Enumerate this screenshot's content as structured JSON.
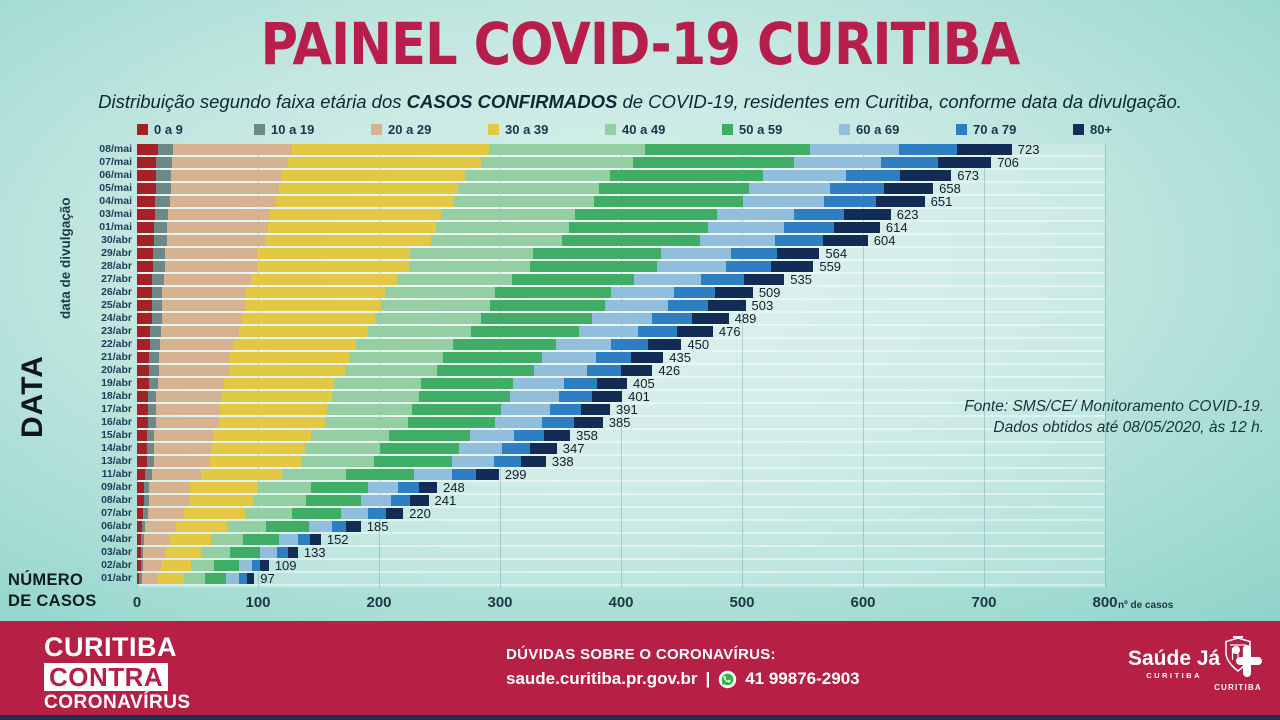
{
  "header": {
    "title": "PAINEL COVID-19 CURITIBA",
    "subtitle_pre": "Distribuição segundo faixa etária dos ",
    "subtitle_bold": "CASOS CONFIRMADOS",
    "subtitle_post": " de COVID-19, residentes em Curitiba, conforme data da divulgação."
  },
  "axis_labels": {
    "y_main": "DATA",
    "y_sub": "data de divulgação",
    "corner_line1": "NÚMERO",
    "corner_line2": "DE CASOS",
    "x_unit": "nº de casos"
  },
  "source_note": {
    "line1": "Fonte: SMS/CE/ Monitoramento COVID-19.",
    "line2": "Dados obtidos até 08/05/2020, às 12 h."
  },
  "chart_data": {
    "type": "bar",
    "orientation": "horizontal",
    "stacked": true,
    "title": "Casos confirmados de COVID-19 por faixa etária e data de divulgação",
    "xlabel": "nº de casos",
    "ylabel": "DATA (data de divulgação)",
    "xlim": [
      0,
      800
    ],
    "x_ticks": [
      0,
      100,
      200,
      300,
      400,
      500,
      600,
      700,
      800
    ],
    "legend_position": "top",
    "grid": "vertical",
    "categories": [
      "08/mai",
      "07/mai",
      "06/mai",
      "05/mai",
      "04/mai",
      "03/mai",
      "01/mai",
      "30/abr",
      "29/abr",
      "28/abr",
      "27/abr",
      "26/abr",
      "25/abr",
      "24/abr",
      "23/abr",
      "22/abr",
      "21/abr",
      "20/abr",
      "19/abr",
      "18/abr",
      "17/abr",
      "16/abr",
      "15/abr",
      "14/abr",
      "13/abr",
      "11/abr",
      "09/abr",
      "08/abr",
      "07/abr",
      "06/abr",
      "04/abr",
      "03/abr",
      "02/abr",
      "01/abr"
    ],
    "totals": [
      723,
      706,
      673,
      658,
      651,
      623,
      614,
      604,
      564,
      559,
      535,
      509,
      503,
      489,
      476,
      450,
      435,
      426,
      405,
      401,
      391,
      385,
      358,
      347,
      338,
      299,
      248,
      241,
      220,
      185,
      152,
      133,
      109,
      97
    ],
    "groups": [
      {
        "label": "0 a 9",
        "color": "#a62126",
        "fraction_est": 0.0235
      },
      {
        "label": "10 a 19",
        "color": "#6c8889",
        "fraction_est": 0.018
      },
      {
        "label": "20 a 29",
        "color": "#d6b290",
        "fraction_est": 0.1355
      },
      {
        "label": "30 a 39",
        "color": "#e4c843",
        "fraction_est": 0.2255
      },
      {
        "label": "40 a 49",
        "color": "#93cfa2",
        "fraction_est": 0.1785
      },
      {
        "label": "50 a 59",
        "color": "#40ad64",
        "fraction_est": 0.188
      },
      {
        "label": "60 a 69",
        "color": "#92bede",
        "fraction_est": 0.1025
      },
      {
        "label": "70 a 79",
        "color": "#2e7fc2",
        "fraction_est": 0.0665
      },
      {
        "label": "80+",
        "color": "#122c55",
        "fraction_est": 0.062
      }
    ]
  },
  "footer": {
    "logo": {
      "line1": "CURITIBA",
      "line2": "CONTRA",
      "line3": "CORONAVÍRUS"
    },
    "contact": {
      "heading": "DÚVIDAS SOBRE O CORONAVÍRUS:",
      "site": "saude.curitiba.pr.gov.br",
      "separator": "|",
      "phone": "41 99876-2903"
    },
    "saude_ja": {
      "name": "Saúde Já",
      "city": "CURITIBA"
    },
    "crest_city": "CURITIBA",
    "colors": {
      "bg": "#b62045",
      "accent_title": "#b81e4c",
      "whatsapp_green": "#2bb741"
    }
  }
}
